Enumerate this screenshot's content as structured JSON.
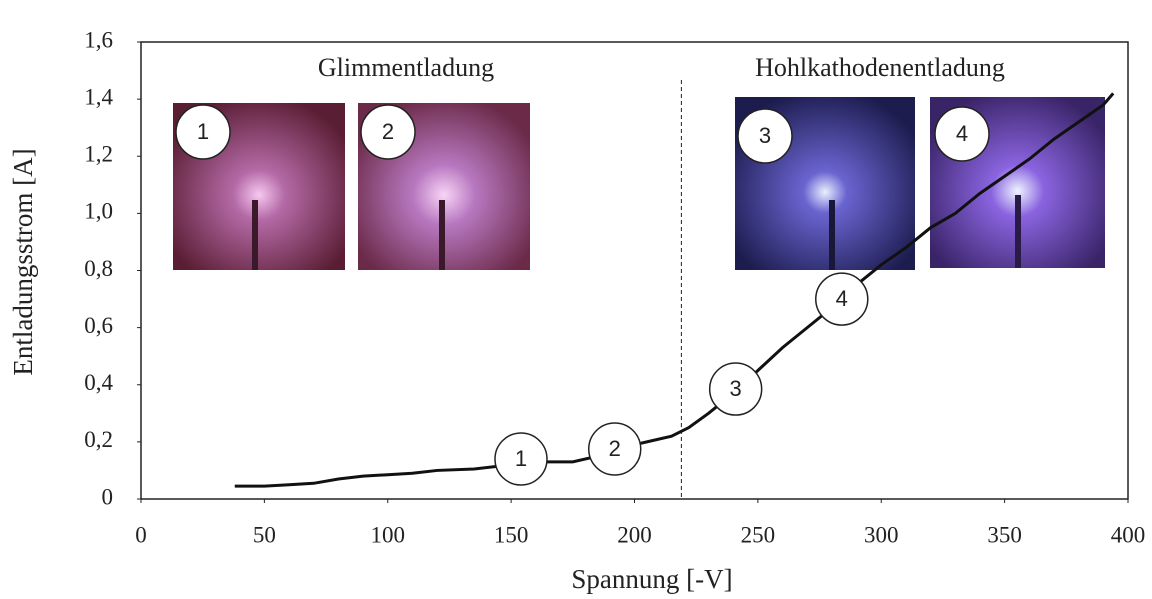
{
  "chart_data": {
    "type": "line",
    "xlabel": "Spannung [-V]",
    "ylabel": "Entladungsstrom [A]",
    "x": [
      38,
      50,
      60,
      70,
      80,
      90,
      100,
      110,
      120,
      135,
      150,
      165,
      175,
      185,
      195,
      205,
      215,
      222,
      230,
      240,
      250,
      260,
      270,
      280,
      290,
      300,
      310,
      320,
      330,
      340,
      350,
      360,
      370,
      380,
      390,
      394
    ],
    "series": [
      {
        "color": "#111111",
        "values": [
          0.045,
          0.045,
          0.05,
          0.055,
          0.07,
          0.08,
          0.085,
          0.09,
          0.1,
          0.105,
          0.12,
          0.13,
          0.13,
          0.15,
          0.18,
          0.2,
          0.22,
          0.25,
          0.3,
          0.37,
          0.45,
          0.53,
          0.6,
          0.67,
          0.75,
          0.82,
          0.88,
          0.95,
          1.0,
          1.07,
          1.13,
          1.19,
          1.26,
          1.32,
          1.38,
          1.42
        ]
      }
    ],
    "xlim": [
      0,
      400
    ],
    "xticks": [
      0,
      50,
      100,
      150,
      200,
      250,
      300,
      350,
      400
    ],
    "ylim": [
      0,
      1.6
    ],
    "yticks": [
      0,
      {
        "value": 0.2,
        "label": "0,2"
      },
      {
        "value": 0.4,
        "label": "0,4"
      },
      {
        "value": 0.6,
        "label": "0,6"
      },
      {
        "value": 0.8,
        "label": "0,8"
      },
      {
        "value": 1.0,
        "label": "1,0"
      },
      {
        "value": 1.2,
        "label": "1,2"
      },
      {
        "value": 1.4,
        "label": "1,4"
      },
      {
        "value": 1.6,
        "label": "1,6"
      }
    ],
    "grid": false,
    "divider_x": 219,
    "regions": [
      "Glimmentladung",
      "Hohlkathodenentladung"
    ],
    "annotations": [
      {
        "text": "1",
        "x": 154,
        "y": 0.14
      },
      {
        "text": "2",
        "x": 192,
        "y": 0.175
      },
      {
        "text": "3",
        "x": 241,
        "y": 0.385
      },
      {
        "text": "4",
        "x": 284,
        "y": 0.7
      }
    ],
    "photos": [
      "1",
      "2",
      "3",
      "4"
    ]
  }
}
